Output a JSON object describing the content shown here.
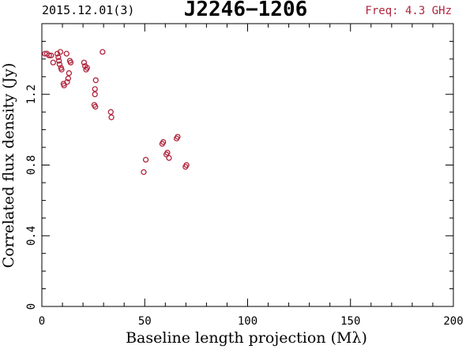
{
  "header": {
    "date": "2015.12.01(3)",
    "source": "J2246−1206",
    "freq": "Freq: 4.3 GHz"
  },
  "colors": {
    "points": "#b0243c",
    "freq": "#b0243c",
    "axes": "#000000"
  },
  "chart_data": {
    "type": "scatter",
    "title": "J2246−1206",
    "xlabel": "Baseline length projection (Mλ)",
    "ylabel": "Correlated flux density (Jy)",
    "xlim": [
      0,
      200
    ],
    "ylim": [
      0,
      1.6
    ],
    "xticks": [
      0,
      50,
      100,
      150,
      200
    ],
    "yticks": [
      0,
      0.4,
      0.8,
      1.2
    ],
    "x_tick_labels": [
      "0",
      "50",
      "100",
      "150",
      "200"
    ],
    "y_tick_labels": [
      "0",
      "0.4",
      "0.8",
      "1.2"
    ],
    "grid": false,
    "series": [
      {
        "points": [
          [
            1.5,
            1.43
          ],
          [
            2.5,
            1.43
          ],
          [
            3.5,
            1.42
          ],
          [
            4.5,
            1.42
          ],
          [
            5.5,
            1.38
          ],
          [
            7.5,
            1.43
          ],
          [
            8.0,
            1.41
          ],
          [
            8.3,
            1.39
          ],
          [
            8.6,
            1.37
          ],
          [
            9.0,
            1.44
          ],
          [
            9.3,
            1.35
          ],
          [
            9.6,
            1.34
          ],
          [
            10.5,
            1.26
          ],
          [
            10.8,
            1.25
          ],
          [
            12.0,
            1.43
          ],
          [
            12.3,
            1.27
          ],
          [
            12.8,
            1.29
          ],
          [
            13.2,
            1.32
          ],
          [
            13.6,
            1.39
          ],
          [
            14.0,
            1.38
          ],
          [
            20.5,
            1.38
          ],
          [
            21.0,
            1.36
          ],
          [
            21.5,
            1.34
          ],
          [
            22.0,
            1.35
          ],
          [
            25.5,
            1.14
          ],
          [
            26.0,
            1.13
          ],
          [
            25.8,
            1.2
          ],
          [
            25.8,
            1.23
          ],
          [
            26.2,
            1.28
          ],
          [
            29.5,
            1.44
          ],
          [
            33.5,
            1.1
          ],
          [
            33.8,
            1.07
          ],
          [
            49.5,
            0.76
          ],
          [
            50.5,
            0.83
          ],
          [
            58.5,
            0.92
          ],
          [
            59.0,
            0.93
          ],
          [
            60.5,
            0.86
          ],
          [
            61.0,
            0.87
          ],
          [
            61.8,
            0.84
          ],
          [
            65.5,
            0.95
          ],
          [
            66.0,
            0.96
          ],
          [
            69.8,
            0.79
          ],
          [
            70.3,
            0.8
          ]
        ]
      }
    ]
  }
}
